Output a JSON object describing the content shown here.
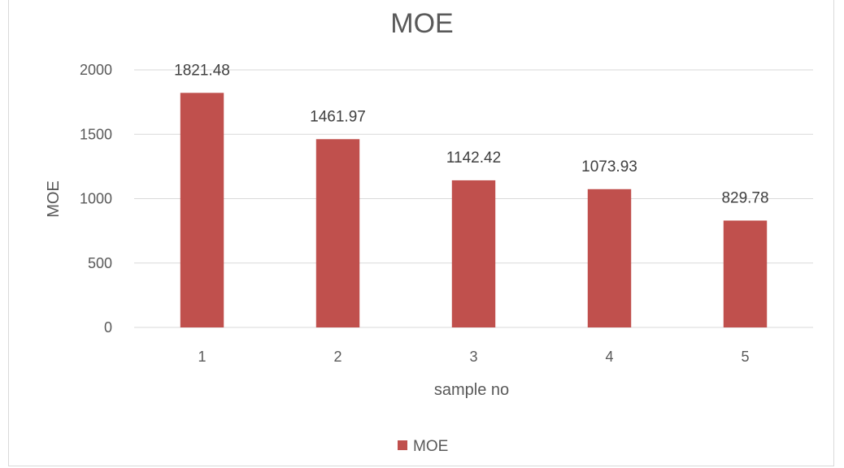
{
  "chart_data": {
    "type": "bar",
    "title": "MOE",
    "xlabel": "sample no",
    "ylabel": "MOE",
    "categories": [
      "1",
      "2",
      "3",
      "4",
      "5"
    ],
    "series": [
      {
        "name": "MOE",
        "values": [
          1821.48,
          1461.97,
          1142.42,
          1073.93,
          829.78
        ],
        "labels": [
          "1821.48",
          "1461.97",
          "1142.42",
          "1073.93",
          "829.78"
        ],
        "color": "#c0504d"
      }
    ],
    "ylim": [
      0,
      2000
    ],
    "yticks": [
      "0",
      "500",
      "1000",
      "1500",
      "2000"
    ],
    "grid": true,
    "legend": "bottom"
  }
}
